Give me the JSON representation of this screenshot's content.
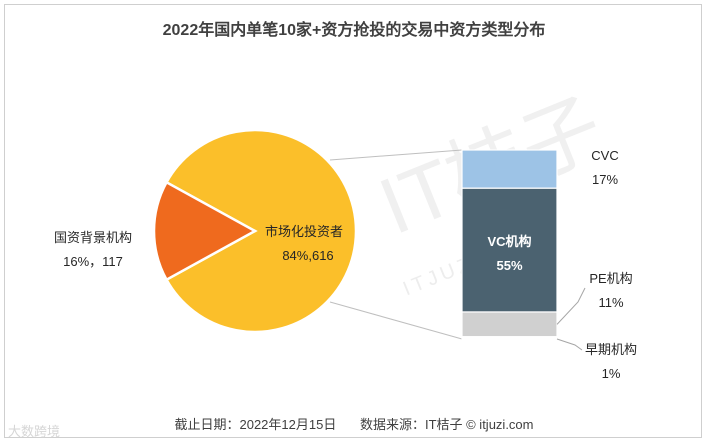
{
  "title": "2022年国内单笔10家+资方抢投的交易中资方类型分布",
  "footer": {
    "date": "截止日期：2022年12月15日",
    "source": "数据来源：IT桔子 © itjuzi.com"
  },
  "watermarks": {
    "big": "IT桔子",
    "small": "ITJUZI.COM",
    "logo": "大数跨境"
  },
  "chart_data": [
    {
      "type": "pie",
      "slices": [
        {
          "name": "市场化投资者",
          "percent": 84,
          "count": 616,
          "label_line2": "84%,616",
          "color": "#FBBF2A"
        },
        {
          "name": "国资背景机构",
          "percent": 16,
          "count": 117,
          "label_line2": "16%，117",
          "color": "#EF6A1E"
        }
      ]
    },
    {
      "type": "bar",
      "stacked": true,
      "categories": [
        "CVC",
        "VC机构",
        "PE机构",
        "早期机构"
      ],
      "values": [
        17,
        55,
        11,
        1
      ],
      "labels": [
        "17%",
        "55%",
        "11%",
        "1%"
      ],
      "colors": [
        "#9DC3E6",
        "#4B6270",
        "#D0D0D0",
        "#FFFFFF"
      ]
    }
  ]
}
